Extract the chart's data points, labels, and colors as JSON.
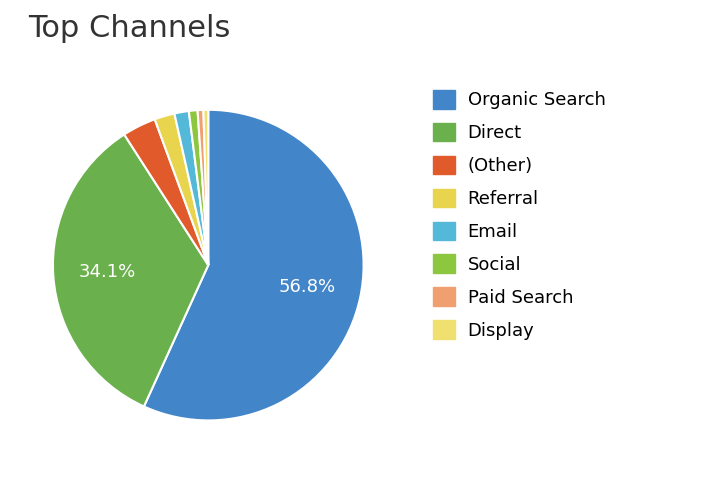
{
  "title": "Top Channels",
  "labels": [
    "Organic Search",
    "Direct",
    "(Other)",
    "Referral",
    "Email",
    "Social",
    "Paid Search",
    "Display"
  ],
  "values": [
    56.8,
    34.1,
    3.5,
    2.1,
    1.5,
    0.9,
    0.6,
    0.5
  ],
  "colors": [
    "#4285c8",
    "#6ab04c",
    "#e05a2b",
    "#e8d44d",
    "#54b8d8",
    "#8dc63f",
    "#f0a070",
    "#f0e070"
  ],
  "title_fontsize": 22,
  "background_color": "#ffffff",
  "startangle": 90
}
